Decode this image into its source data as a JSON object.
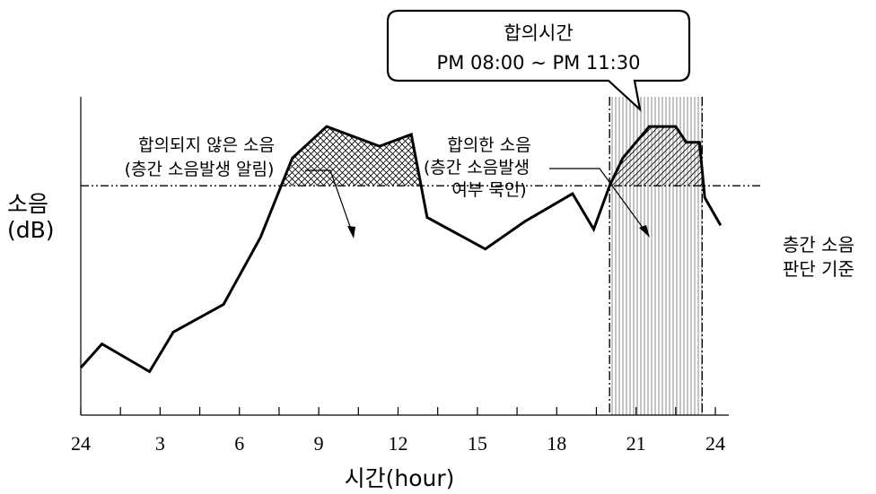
{
  "chart_data": {
    "type": "line",
    "xlabel": "시간(hour)",
    "ylabel_line1": "소음",
    "ylabel_line2": "(dB)",
    "x_ticks": [
      "24",
      "3",
      "6",
      "9",
      "12",
      "15",
      "18",
      "21",
      "24"
    ],
    "x_tick_values": [
      0,
      3,
      6,
      9,
      12,
      15,
      18,
      21,
      24
    ],
    "xlim": [
      0,
      24.5
    ],
    "ylim": [
      0,
      100
    ],
    "grid": false,
    "series": [
      {
        "x": [
          0,
          0.8,
          2.6,
          3.5,
          5.4,
          6.8,
          8.0,
          9.3,
          11.3,
          12.5,
          13.1,
          15.3,
          16.8,
          18.6,
          19.4,
          20.0,
          20.5,
          21.5,
          22.5,
          22.9,
          23.4,
          23.6,
          24.2
        ],
        "values": [
          12,
          18,
          11,
          21,
          28,
          45,
          65,
          73,
          68,
          71,
          50,
          42,
          49,
          56,
          47,
          58,
          65,
          73,
          73,
          69,
          69,
          55,
          48
        ]
      }
    ],
    "threshold": {
      "value": 58,
      "label_line1": "층간 소음",
      "label_line2": "판단 기준"
    },
    "agreed_period": {
      "start": 20.0,
      "end": 23.5,
      "callout_line1": "합의시간",
      "callout_line2": "PM 08:00 ~ PM 11:30"
    },
    "annotations": [
      {
        "id": "unagreed",
        "lines": [
          "합의되지 않은 소음",
          "(층간 소음발생 알림)"
        ]
      },
      {
        "id": "agreed",
        "lines": [
          "합의한 소음",
          "(층간 소음발생",
          "여부 묵인)"
        ]
      }
    ],
    "colors": {
      "line": "#000000",
      "background": "#ffffff"
    }
  }
}
